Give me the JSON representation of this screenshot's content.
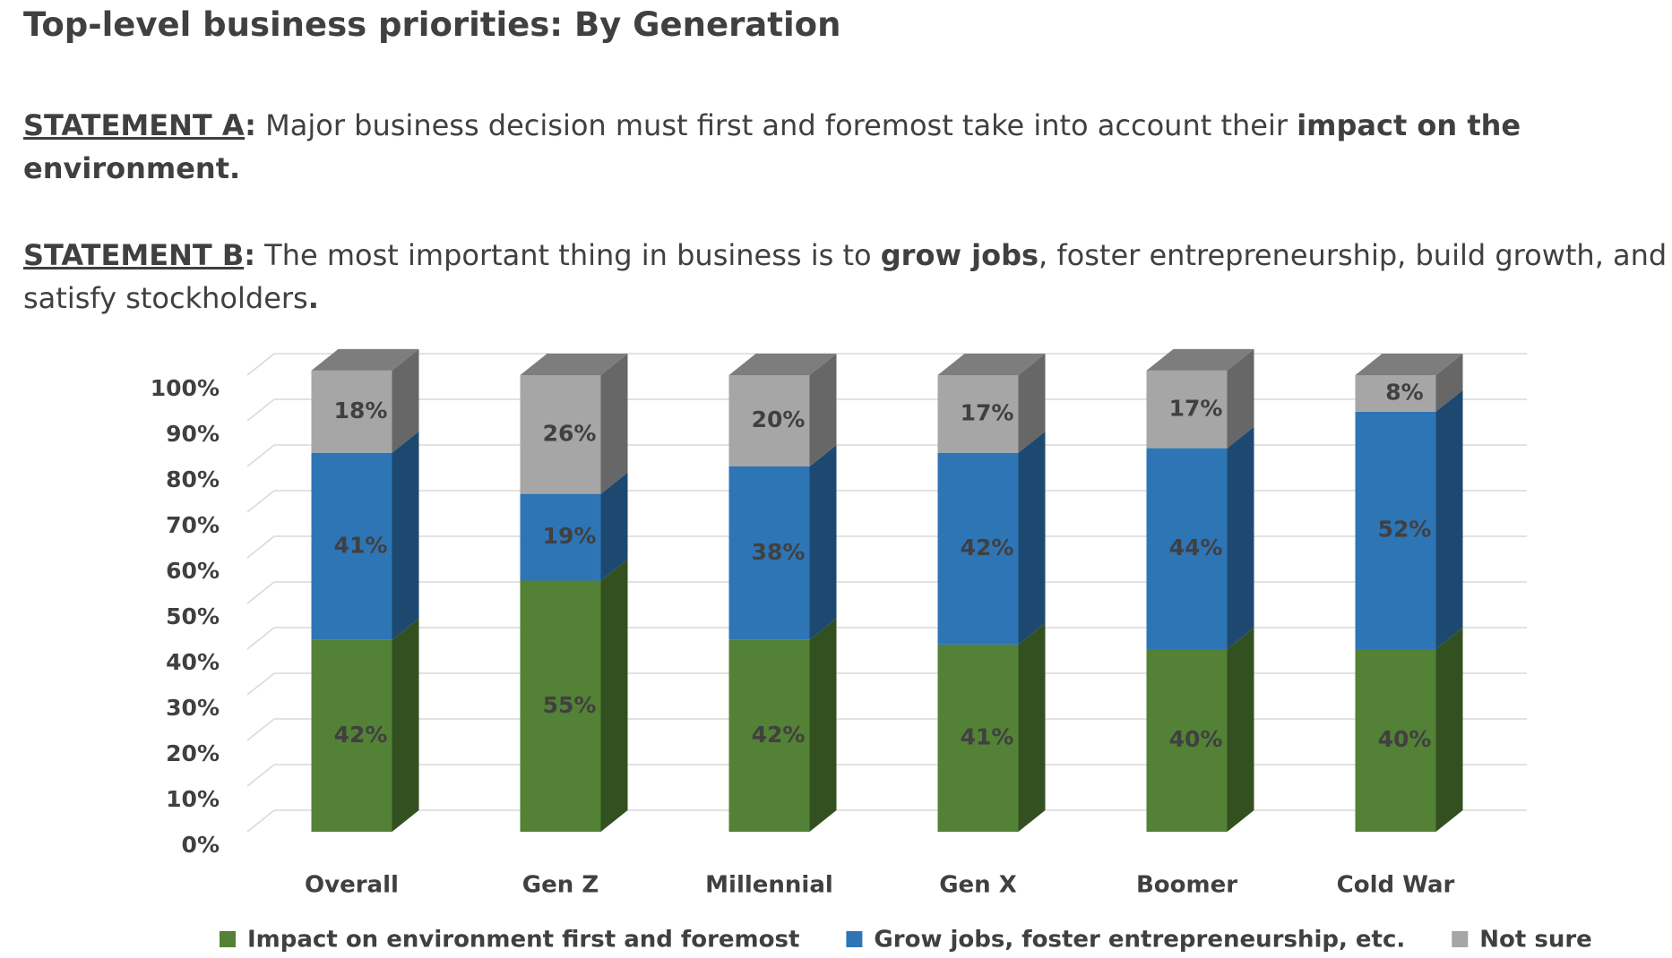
{
  "title": "Top-level business priorities: By Generation",
  "statements": [
    [
      {
        "text": "STATEMENT A",
        "bold": true,
        "underline": true
      },
      {
        "text": ":",
        "bold": true
      },
      {
        "text": " Major business decision must first and foremost take into account their "
      },
      {
        "text": "impact on the environment.",
        "bold": true
      }
    ],
    [
      {
        "text": "STATEMENT B",
        "bold": true,
        "underline": true
      },
      {
        "text": ":",
        "bold": true
      },
      {
        "text": " The most important thing in business is to "
      },
      {
        "text": "grow jobs",
        "bold": true
      },
      {
        "text": ", foster entrepreneurship, build growth, and satisfy stockholders"
      },
      {
        "text": ".",
        "bold": true
      }
    ]
  ],
  "chart_data": {
    "type": "stacked-bar-3d",
    "categories": [
      "Overall",
      "Gen Z",
      "Millennial",
      "Gen X",
      "Boomer",
      "Cold War"
    ],
    "series": [
      {
        "name": "Impact on environment first and foremost",
        "color": "#538135",
        "values": [
          42,
          55,
          42,
          41,
          40,
          40
        ],
        "value_labels": [
          "42%",
          "55%",
          "42%",
          "41%",
          "40%",
          "40%"
        ]
      },
      {
        "name": "Grow jobs, foster entrepreneurship, etc.",
        "color": "#2e75b6",
        "values": [
          41,
          19,
          38,
          42,
          44,
          52
        ],
        "value_labels": [
          "41%",
          "19%",
          "38%",
          "42%",
          "44%",
          "52%"
        ]
      },
      {
        "name": "Not sure",
        "color": "#a6a6a6",
        "values": [
          18,
          26,
          20,
          17,
          17,
          8
        ],
        "value_labels": [
          "18%",
          "26%",
          "20%",
          "17%",
          "17%",
          "8%"
        ]
      }
    ],
    "ylim": [
      0,
      100
    ],
    "yticks": [
      {
        "value": 0,
        "label": "0%"
      },
      {
        "value": 10,
        "label": "10%"
      },
      {
        "value": 20,
        "label": "20%"
      },
      {
        "value": 30,
        "label": "30%"
      },
      {
        "value": 40,
        "label": "40%"
      },
      {
        "value": 50,
        "label": "50%"
      },
      {
        "value": 60,
        "label": "60%"
      },
      {
        "value": 70,
        "label": "70%"
      },
      {
        "value": 80,
        "label": "80%"
      },
      {
        "value": 90,
        "label": "90%"
      },
      {
        "value": 100,
        "label": "100%"
      }
    ],
    "grid": true,
    "legend": "bottom"
  }
}
